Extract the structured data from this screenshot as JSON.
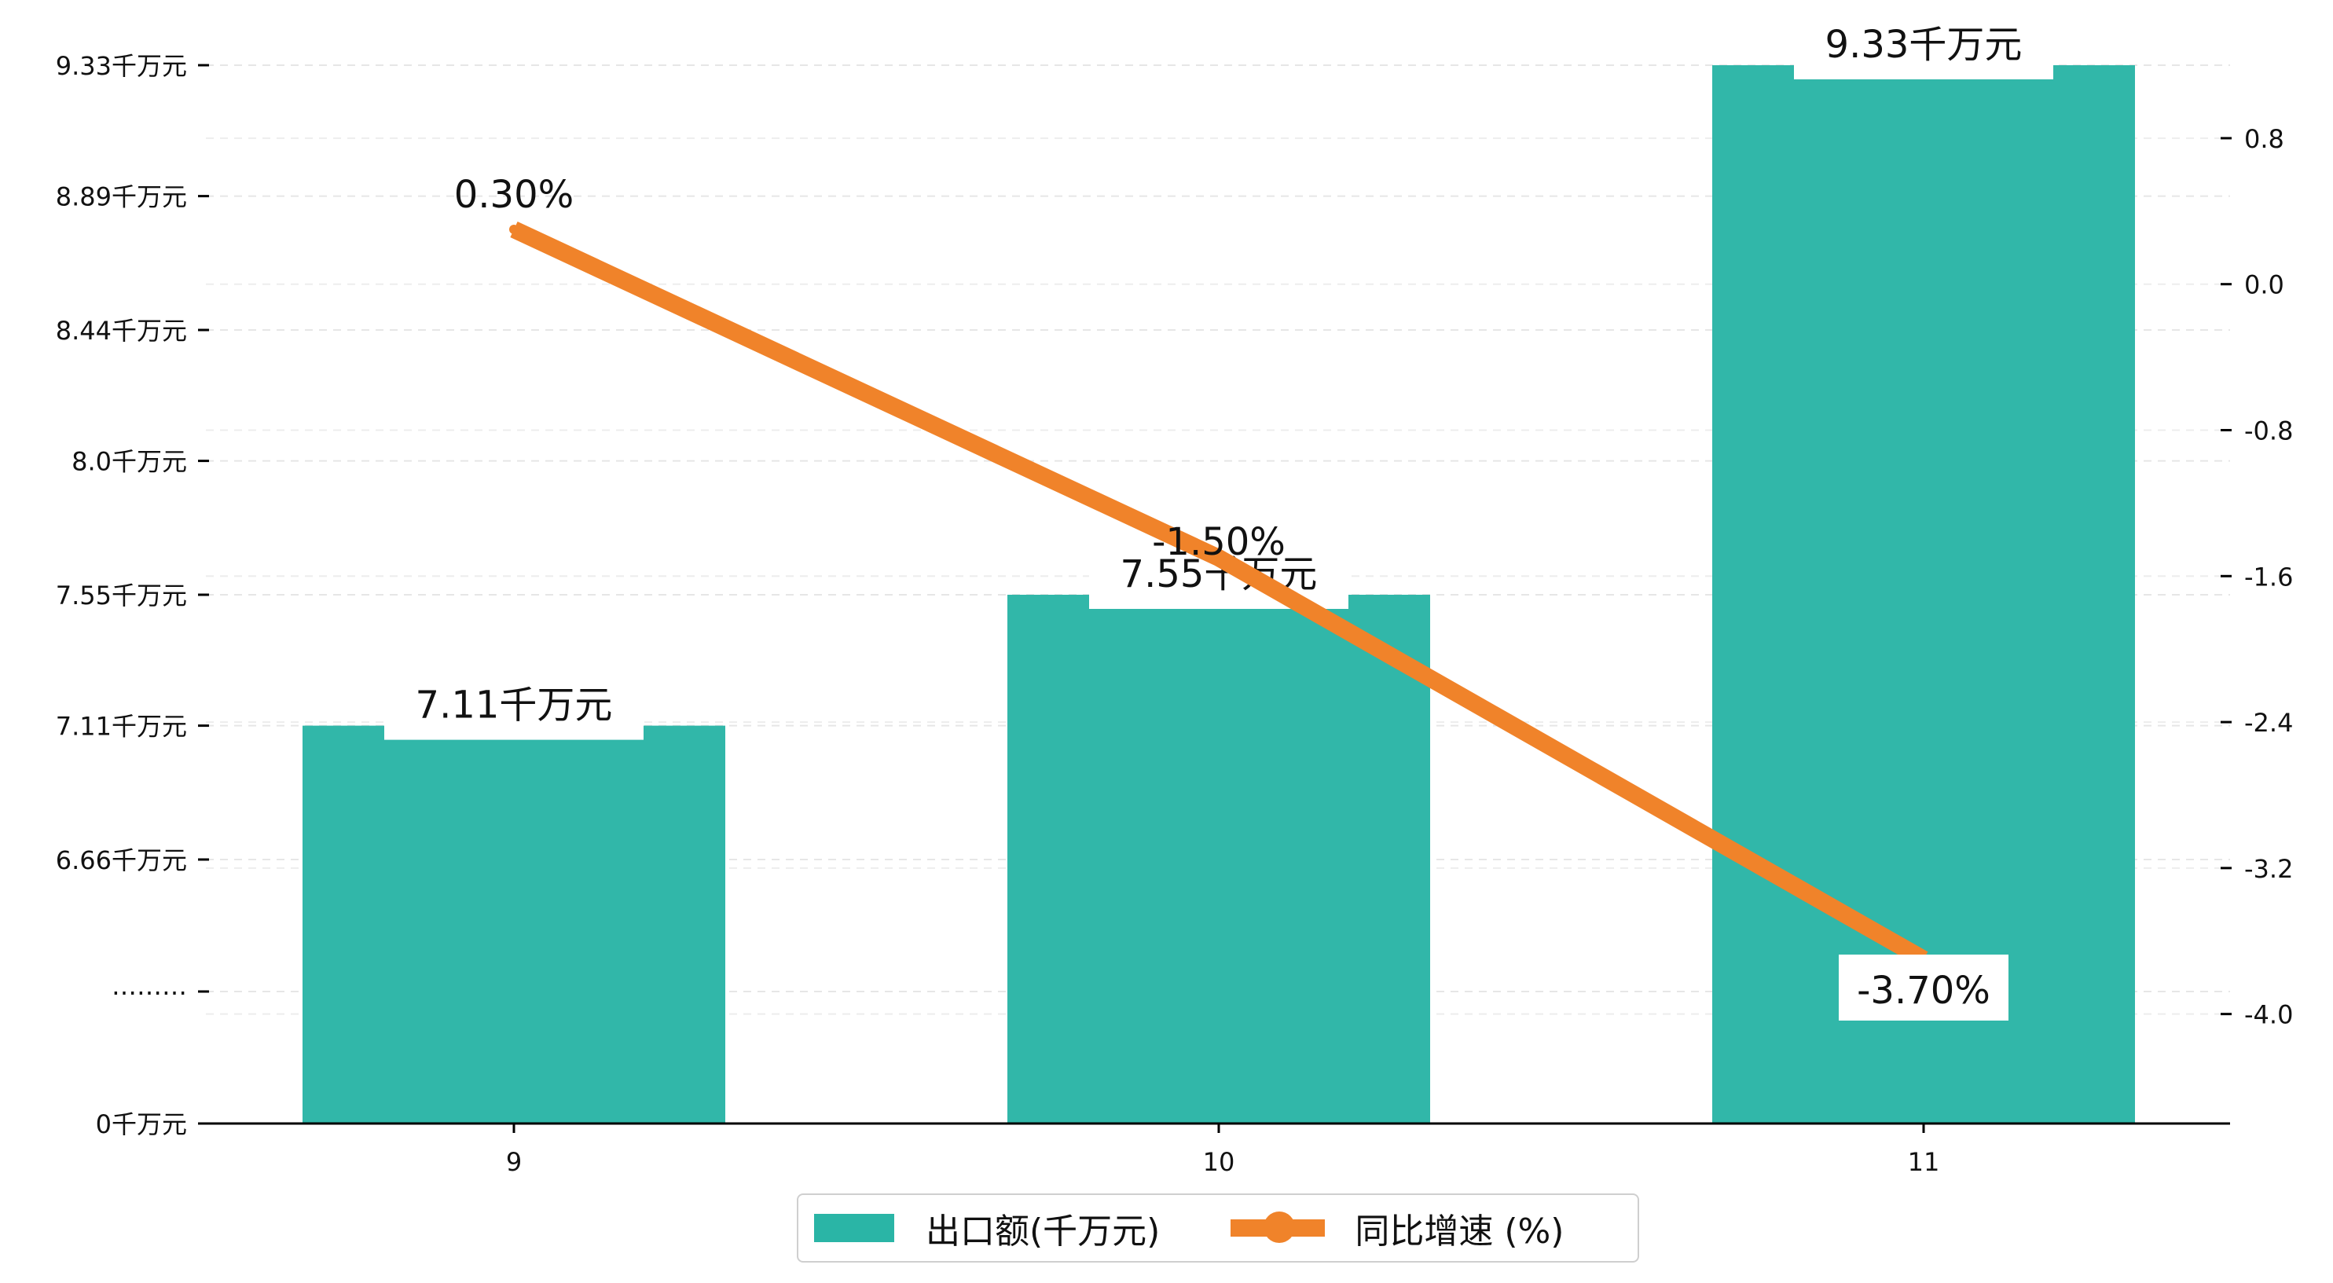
{
  "chart_data": {
    "type": "bar+line",
    "categories": [
      "9",
      "10",
      "11"
    ],
    "series": [
      {
        "name": "出口额(千万元)",
        "type": "bar",
        "axis": "left",
        "color": "#2ab5a6",
        "values": [
          7.11,
          7.55,
          9.33
        ],
        "labels": [
          "7.11千万元",
          "7.55千万元",
          "9.33千万元"
        ]
      },
      {
        "name": "同比增速 (%)",
        "type": "line",
        "axis": "right",
        "color": "#f0832a",
        "values": [
          0.3,
          -1.5,
          -3.7
        ],
        "labels": [
          "0.30%",
          "-1.50%",
          "-3.70%"
        ]
      }
    ],
    "y_left": {
      "ticks": [
        {
          "value": 0,
          "label": "0千万元"
        },
        {
          "value": 6.66,
          "label": "6.66千万元"
        },
        {
          "value": 7.11,
          "label": "7.11千万元"
        },
        {
          "value": 7.55,
          "label": "7.55千万元"
        },
        {
          "value": 8.0,
          "label": "8.0千万元"
        },
        {
          "value": 8.44,
          "label": "8.44千万元"
        },
        {
          "value": 8.89,
          "label": "8.89千万元"
        },
        {
          "value": 9.33,
          "label": "9.33千万元"
        }
      ],
      "break_label": "………",
      "broken_axis": true
    },
    "y_right": {
      "ylim": [
        -4.6,
        1.2
      ],
      "ticks": [
        {
          "value": 0.8,
          "label": "0.8"
        },
        {
          "value": 0.0,
          "label": "0.0"
        },
        {
          "value": -0.8,
          "label": "-0.8"
        },
        {
          "value": -1.6,
          "label": "-1.6"
        },
        {
          "value": -2.4,
          "label": "-2.4"
        },
        {
          "value": -3.2,
          "label": "-3.2"
        },
        {
          "value": -4.0,
          "label": "-4.0"
        }
      ]
    },
    "grid": true,
    "legend_position": "bottom-center"
  }
}
